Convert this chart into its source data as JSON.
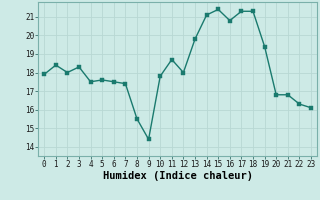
{
  "x": [
    0,
    1,
    2,
    3,
    4,
    5,
    6,
    7,
    8,
    9,
    10,
    11,
    12,
    13,
    14,
    15,
    16,
    17,
    18,
    19,
    20,
    21,
    22,
    23
  ],
  "y": [
    17.9,
    18.4,
    18.0,
    18.3,
    17.5,
    17.6,
    17.5,
    17.4,
    15.5,
    14.4,
    17.8,
    18.7,
    18.0,
    19.8,
    21.1,
    21.4,
    20.8,
    21.3,
    21.3,
    19.4,
    16.8,
    16.8,
    16.3,
    16.1
  ],
  "line_color": "#1a7a6e",
  "marker_color": "#1a7a6e",
  "bg_color": "#cdeae6",
  "grid_color_major": "#b8d8d4",
  "grid_color_minor": "#d4ebe8",
  "xlabel": "Humidex (Indice chaleur)",
  "ylim": [
    13.5,
    21.8
  ],
  "yticks": [
    14,
    15,
    16,
    17,
    18,
    19,
    20,
    21
  ],
  "xticks": [
    0,
    1,
    2,
    3,
    4,
    5,
    6,
    7,
    8,
    9,
    10,
    11,
    12,
    13,
    14,
    15,
    16,
    17,
    18,
    19,
    20,
    21,
    22,
    23
  ],
  "tick_fontsize": 5.5,
  "label_fontsize": 7.5,
  "line_width": 1.0,
  "marker_size": 2.5
}
